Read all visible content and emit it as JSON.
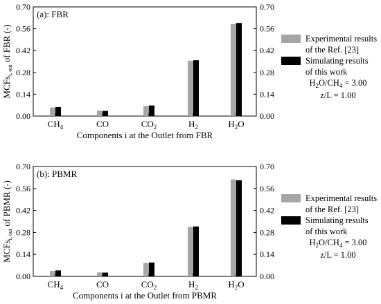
{
  "chart_data": [
    {
      "type": "bar",
      "panel_label": "(a): FBR",
      "title": "",
      "categories": [
        {
          "base": "CH",
          "sub": "4"
        },
        {
          "base": "CO",
          "sub": ""
        },
        {
          "base": "CO",
          "sub": "2"
        },
        {
          "base": "H",
          "sub": "2"
        },
        {
          "base": "H",
          "sub": "2",
          "tail": "O"
        }
      ],
      "series": [
        {
          "name": "Experimental results of the Ref. [23]",
          "color": "#a6a6a6",
          "values": [
            0.055,
            0.035,
            0.065,
            0.355,
            0.59
          ]
        },
        {
          "name": "Simulating results of this work",
          "color": "#000000",
          "values": [
            0.058,
            0.033,
            0.068,
            0.358,
            0.597
          ]
        }
      ],
      "xlabel": "Components i at the Outlet from FBR",
      "ylabel": {
        "main": "MCFs",
        "sub": "i, out",
        "tail": " of FBR (-)"
      },
      "ylim": [
        0,
        0.7
      ],
      "yticks": [
        "0.00",
        "0.14",
        "0.28",
        "0.42",
        "0.56",
        "0.70"
      ],
      "right_axis_ticks": [
        "0.00",
        "0.14",
        "0.28",
        "0.42",
        "0.56",
        "0.70"
      ],
      "legend": {
        "position": "right",
        "entries": [
          {
            "lines": [
              "Experimental results",
              "of the Ref. [23]"
            ],
            "color": "#a6a6a6"
          },
          {
            "lines": [
              "Simulating results",
              "of this work"
            ],
            "color": "#000000"
          }
        ],
        "notes": [
          {
            "pre": "H",
            "sub1": "2",
            "mid": "O/CH",
            "sub2": "4",
            "post": " = 3.00"
          },
          {
            "pre": "z/L = 1.00",
            "sub1": "",
            "mid": "",
            "sub2": "",
            "post": ""
          }
        ]
      },
      "grid": false
    },
    {
      "type": "bar",
      "panel_label": "(b): PBMR",
      "title": "",
      "categories": [
        {
          "base": "CH",
          "sub": "4"
        },
        {
          "base": "CO",
          "sub": ""
        },
        {
          "base": "CO",
          "sub": "2"
        },
        {
          "base": "H",
          "sub": "2"
        },
        {
          "base": "H",
          "sub": "2",
          "tail": "O"
        }
      ],
      "series": [
        {
          "name": "Experimental results of the Ref. [23]",
          "color": "#a6a6a6",
          "values": [
            0.035,
            0.025,
            0.085,
            0.315,
            0.618
          ]
        },
        {
          "name": "Simulating results of this work",
          "color": "#000000",
          "values": [
            0.038,
            0.024,
            0.088,
            0.318,
            0.612
          ]
        }
      ],
      "xlabel": "Components i at the Outlet from PBMR",
      "ylabel": {
        "main": "MCFs",
        "sub": "i, out",
        "tail": " of PBMR (-)"
      },
      "ylim": [
        0,
        0.7
      ],
      "yticks": [
        "0.00",
        "0.14",
        "0.28",
        "0.42",
        "0.56",
        "0.70"
      ],
      "right_axis_ticks": [
        "0.00",
        "0.14",
        "0.28",
        "0.42",
        "0.56",
        "0.70"
      ],
      "legend": {
        "position": "right",
        "entries": [
          {
            "lines": [
              "Experimental results",
              "of the Ref. [23]"
            ],
            "color": "#a6a6a6"
          },
          {
            "lines": [
              "Simulating results",
              "of this work"
            ],
            "color": "#000000"
          }
        ],
        "notes": [
          {
            "pre": "H",
            "sub1": "2",
            "mid": "O/CH",
            "sub2": "4",
            "post": " = 3.00"
          },
          {
            "pre": "z/L = 1.00",
            "sub1": "",
            "mid": "",
            "sub2": "",
            "post": ""
          }
        ]
      },
      "grid": false
    }
  ]
}
